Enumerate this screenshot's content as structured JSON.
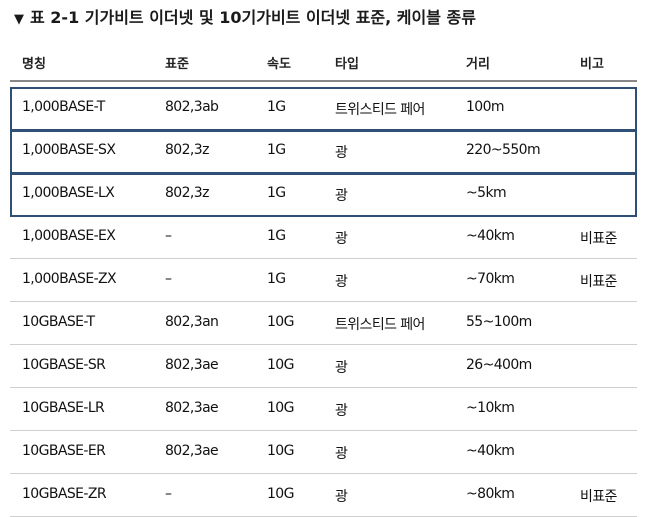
{
  "caption": {
    "marker": "▼",
    "title": "표 2-1 기가비트 이더넷 및 10기가비트 이더넷 표준, 케이블 종류"
  },
  "columns": [
    "명칭",
    "표준",
    "속도",
    "타입",
    "거리",
    "비고"
  ],
  "rows": [
    [
      "1,000BASE-T",
      "802,3ab",
      "1G",
      "트위스티드 페어",
      "100m",
      ""
    ],
    [
      "1,000BASE-SX",
      "802,3z",
      "1G",
      "광",
      "220~550m",
      ""
    ],
    [
      "1,000BASE-LX",
      "802,3z",
      "1G",
      "광",
      "~5km",
      ""
    ],
    [
      "1,000BASE-EX",
      "–",
      "1G",
      "광",
      "~40km",
      "비표준"
    ],
    [
      "1,000BASE-ZX",
      "–",
      "1G",
      "광",
      "~70km",
      "비표준"
    ],
    [
      "10GBASE-T",
      "802,3an",
      "10G",
      "트위스티드 페어",
      "55~100m",
      ""
    ],
    [
      "10GBASE-SR",
      "802,3ae",
      "10G",
      "광",
      "26~400m",
      ""
    ],
    [
      "10GBASE-LR",
      "802,3ae",
      "10G",
      "광",
      "~10km",
      ""
    ],
    [
      "10GBASE-ER",
      "802,3ae",
      "10G",
      "광",
      "~40km",
      ""
    ],
    [
      "10GBASE-ZR",
      "–",
      "10G",
      "광",
      "~80km",
      "비표준"
    ]
  ],
  "highlighted_rows": [
    0,
    1,
    2
  ],
  "colors": {
    "highlight_border": "#2f4f74",
    "row_divider": "#cfcfcf"
  }
}
